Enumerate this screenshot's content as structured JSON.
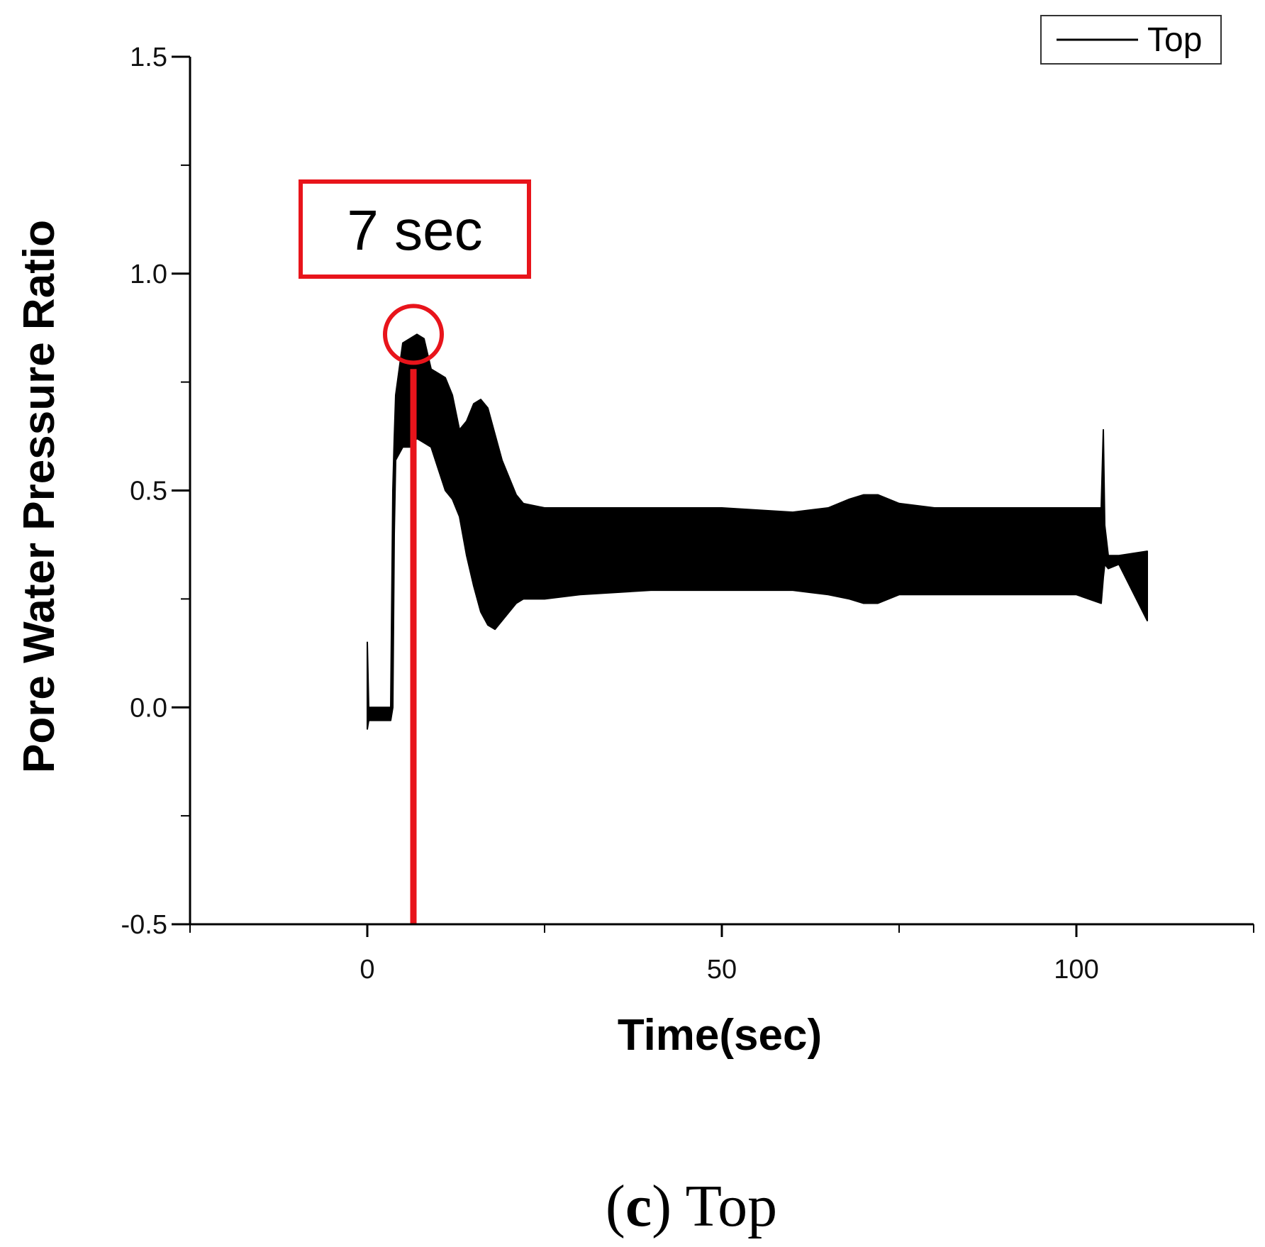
{
  "chart_data": {
    "type": "line",
    "title": "",
    "xlabel": "Time(sec)",
    "ylabel": "Pore Water Pressure Ratio",
    "xlim": [
      -25,
      125
    ],
    "ylim": [
      -0.5,
      1.5
    ],
    "x_ticks": [
      0,
      50,
      100
    ],
    "x_tick_labels": [
      "0",
      "50",
      "100"
    ],
    "y_ticks": [
      -0.5,
      0.0,
      0.5,
      1.0,
      1.5
    ],
    "y_tick_labels": [
      "-0.5",
      "0.0",
      "0.5",
      "1.0",
      "1.5"
    ],
    "legend": {
      "position": "top-right",
      "entries": [
        "Top"
      ]
    },
    "series": [
      {
        "name": "Top",
        "color": "#000000",
        "envelope": {
          "x": [
            0.0,
            0.2,
            3.3,
            3.6,
            3.8,
            4.0,
            5.0,
            6.0,
            7.0,
            8.0,
            9.0,
            10.0,
            11.0,
            12.0,
            13.0,
            14.0,
            15.0,
            16.0,
            17.0,
            18.0,
            19.0,
            20.0,
            21.0,
            22.0,
            25.0,
            30.0,
            40.0,
            50.0,
            60.0,
            65.0,
            68.0,
            70.0,
            72.0,
            75.0,
            80.0,
            90.0,
            95.0,
            100.0,
            103.5,
            103.8,
            104.0,
            104.5,
            106.0,
            110.0
          ],
          "upper": [
            0.15,
            0.0,
            0.0,
            0.5,
            0.62,
            0.72,
            0.84,
            0.85,
            0.86,
            0.85,
            0.78,
            0.77,
            0.76,
            0.72,
            0.64,
            0.66,
            0.7,
            0.71,
            0.69,
            0.63,
            0.57,
            0.53,
            0.49,
            0.47,
            0.46,
            0.46,
            0.46,
            0.46,
            0.45,
            0.46,
            0.48,
            0.49,
            0.49,
            0.47,
            0.46,
            0.46,
            0.46,
            0.46,
            0.46,
            0.64,
            0.42,
            0.35,
            0.35,
            0.36
          ],
          "lower": [
            -0.05,
            -0.03,
            -0.03,
            0.0,
            0.4,
            0.57,
            0.6,
            0.6,
            0.62,
            0.61,
            0.6,
            0.55,
            0.5,
            0.48,
            0.44,
            0.35,
            0.28,
            0.22,
            0.19,
            0.18,
            0.2,
            0.22,
            0.24,
            0.25,
            0.25,
            0.26,
            0.27,
            0.27,
            0.27,
            0.26,
            0.25,
            0.24,
            0.24,
            0.26,
            0.26,
            0.26,
            0.26,
            0.26,
            0.24,
            0.3,
            0.33,
            0.32,
            0.33,
            0.2
          ]
        }
      }
    ],
    "annotations": [
      {
        "type": "box-label",
        "text": "7 sec",
        "color": "#e8141b"
      },
      {
        "type": "circle",
        "x": 6.5,
        "y": 0.86,
        "color": "#e8141b"
      },
      {
        "type": "vertical-line",
        "x": 6.5,
        "y_from": -0.5,
        "y_to": 0.78,
        "color": "#e8141b"
      }
    ]
  },
  "caption": {
    "label": "c",
    "text": " Top"
  }
}
